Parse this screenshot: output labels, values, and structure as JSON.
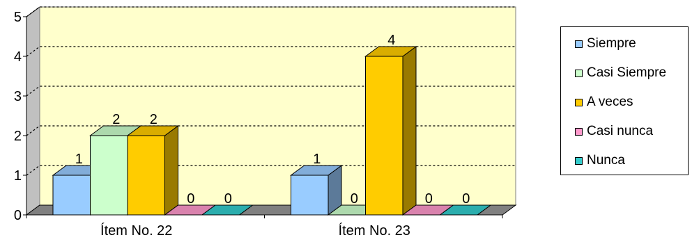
{
  "chart_data": {
    "type": "bar",
    "title": "",
    "xlabel": "",
    "ylabel": "",
    "categories": [
      "Ítem No. 22",
      "Ítem No. 23"
    ],
    "ylim": [
      0,
      5
    ],
    "yticks": [
      "0",
      "1",
      "2",
      "3",
      "4",
      "5"
    ],
    "grid": true,
    "legend_position": "right",
    "series": [
      {
        "name": "Siempre",
        "values": [
          1,
          1
        ],
        "color": "#99CCFF",
        "label_texts": [
          "1",
          "1"
        ]
      },
      {
        "name": "Casi Siempre",
        "values": [
          2,
          0
        ],
        "color": "#CCFFCC",
        "label_texts": [
          "2",
          "0"
        ]
      },
      {
        "name": "A veces",
        "values": [
          2,
          4
        ],
        "color": "#FFCC00",
        "label_texts": [
          "2",
          "4"
        ]
      },
      {
        "name": "Casi nunca",
        "values": [
          0,
          0
        ],
        "color": "#FF99CC",
        "label_texts": [
          "0",
          "0"
        ]
      },
      {
        "name": "Nunca",
        "values": [
          0,
          0
        ],
        "color": "#33CCCC",
        "label_texts": [
          "0",
          "0"
        ]
      }
    ],
    "colors": {
      "plot_background": "#FFFFCC",
      "floor": "#808080",
      "wall_side": "#C0C0C0"
    }
  }
}
